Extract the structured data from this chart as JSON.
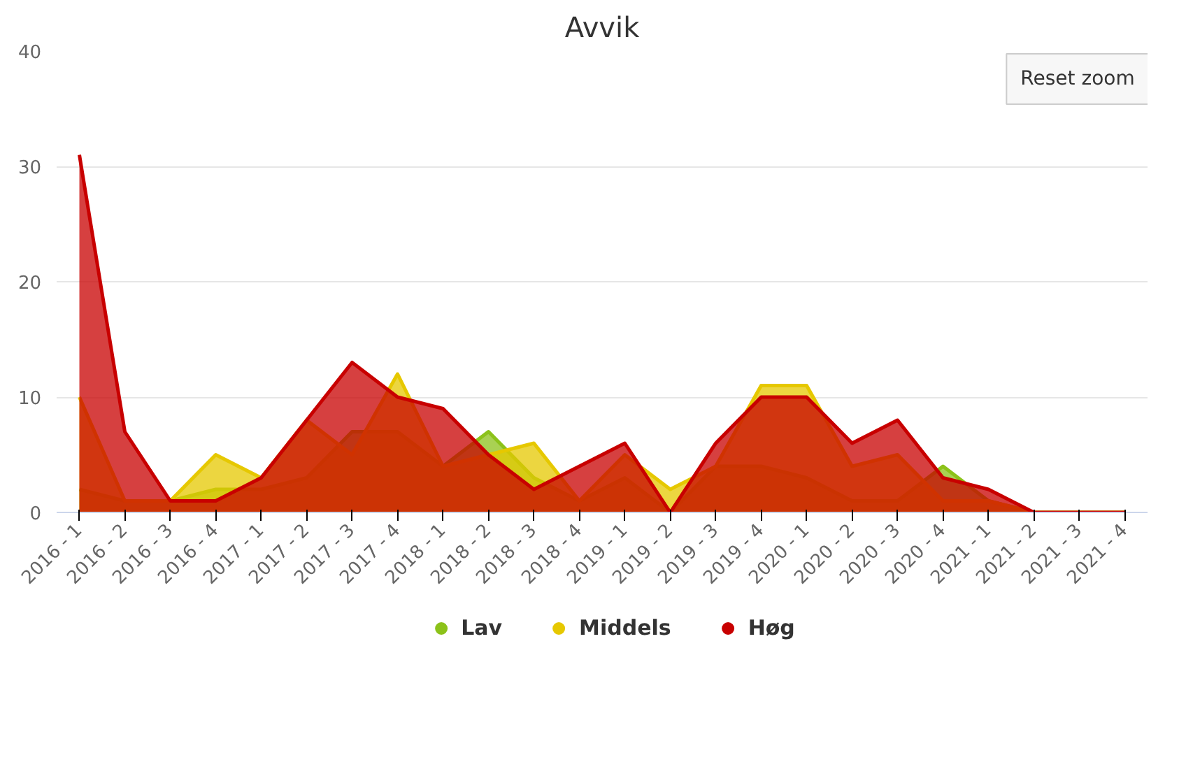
{
  "chart_data": {
    "type": "area",
    "title": "Avvik",
    "categories": [
      "2016 - 1",
      "2016 - 2",
      "2016 - 3",
      "2016 - 4",
      "2017 - 1",
      "2017 - 2",
      "2017 - 3",
      "2017 - 4",
      "2018 - 1",
      "2018 - 2",
      "2018 - 3",
      "2018 - 4",
      "2019 - 1",
      "2019 - 2",
      "2019 - 3",
      "2019 - 4",
      "2020 - 1",
      "2020 - 2",
      "2020 - 3",
      "2020 - 4",
      "2021 - 1",
      "2021 - 2",
      "2021 - 3",
      "2021 - 4"
    ],
    "series": [
      {
        "name": "Lav",
        "color": "#8cc21a",
        "values": [
          2,
          1,
          1,
          2,
          2,
          3,
          7,
          7,
          4,
          7,
          3,
          1,
          3,
          0,
          4,
          4,
          3,
          1,
          1,
          4,
          1,
          0,
          0,
          0
        ]
      },
      {
        "name": "Middels",
        "color": "#e6c800",
        "values": [
          10,
          1,
          1,
          5,
          3,
          8,
          5,
          12,
          4,
          5,
          6,
          1,
          5,
          2,
          4,
          11,
          11,
          4,
          5,
          1,
          1,
          0,
          0,
          0
        ]
      },
      {
        "name": "Høg",
        "color": "#c80000",
        "values": [
          31,
          7,
          1,
          1,
          3,
          8,
          13,
          10,
          9,
          5,
          2,
          4,
          6,
          0,
          6,
          10,
          10,
          6,
          8,
          3,
          2,
          0,
          0,
          0
        ]
      }
    ],
    "ylim": [
      0,
      40
    ],
    "yticks": [
      0,
      10,
      20,
      30,
      40
    ],
    "grid": "y",
    "legend": "bottom",
    "marker": "none",
    "annotations": [
      "Reset zoom"
    ]
  }
}
